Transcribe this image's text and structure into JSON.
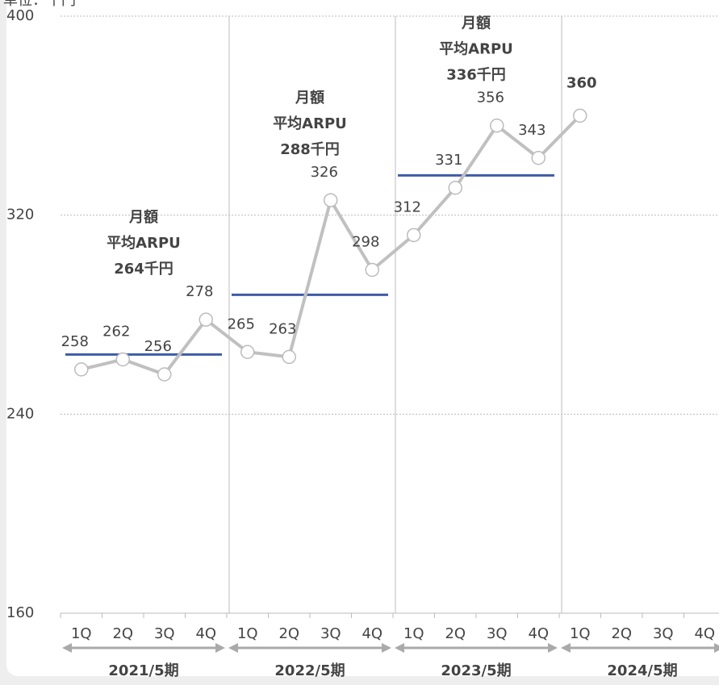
{
  "chart_data": {
    "type": "line",
    "y_label": "単位：千円",
    "categories": [
      "1Q",
      "2Q",
      "3Q",
      "4Q",
      "1Q",
      "2Q",
      "3Q",
      "4Q",
      "1Q",
      "2Q",
      "3Q",
      "4Q",
      "1Q",
      "2Q",
      "3Q",
      "4Q"
    ],
    "groups": [
      "2021/5期",
      "2022/5期",
      "2023/5期",
      "2024/5期"
    ],
    "series": [
      {
        "name": "ARPU",
        "color": "#c0c0c0",
        "values": [
          258,
          262,
          256,
          278,
          265,
          263,
          326,
          298,
          312,
          331,
          356,
          343,
          360,
          null,
          null,
          null
        ]
      }
    ],
    "highlight": 12,
    "highlight_color": "#3f5ca8",
    "averages": [
      {
        "value": 264,
        "lines": [
          "月額",
          "平均ARPU",
          "264千円"
        ]
      },
      {
        "value": 288,
        "lines": [
          "月額",
          "平均ARPU",
          "288千円"
        ]
      },
      {
        "value": 336,
        "lines": [
          "月額",
          "平均ARPU",
          "336千円"
        ]
      }
    ],
    "average_color": "#3f5ca8",
    "ylim": [
      160,
      400
    ],
    "yticks": [
      160,
      240,
      320,
      400
    ],
    "grid": true
  }
}
